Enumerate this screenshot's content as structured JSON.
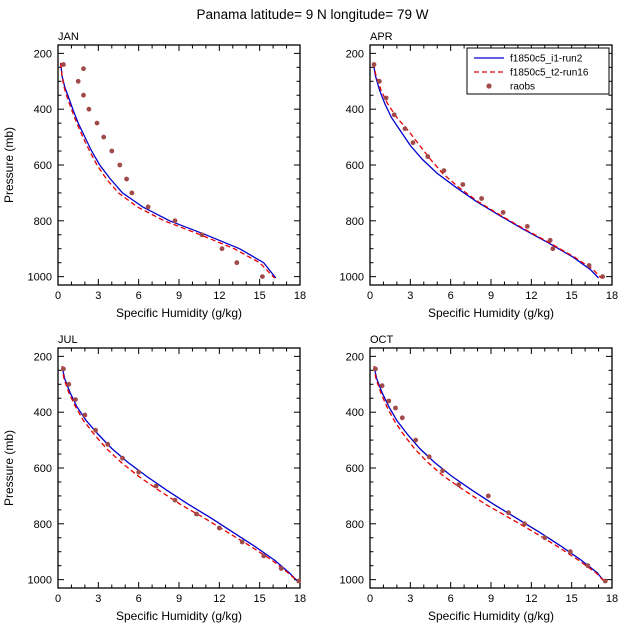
{
  "figure_title": "Panama  latitude= 9 N longitude= 79 W",
  "chart_data": [
    {
      "type": "line",
      "title": "JAN",
      "xlabel": "Specific Humidity (g/kg)",
      "ylabel": "Pressure (mb)",
      "xlim": [
        0,
        18
      ],
      "ylim": [
        170,
        1030
      ],
      "xticks": [
        0,
        3,
        6,
        9,
        12,
        15,
        18
      ],
      "xminor": 1,
      "yticks": [
        200,
        400,
        600,
        800,
        1000
      ],
      "yminor": 50,
      "y_axis_direction": "increasing-downward",
      "series": [
        {
          "name": "f1850c5_i1-run2",
          "style": "solid",
          "color": "#0000cd",
          "points": [
            [
              0.2,
              235
            ],
            [
              0.3,
              280
            ],
            [
              0.5,
              320
            ],
            [
              0.8,
              360
            ],
            [
              1.1,
              400
            ],
            [
              1.5,
              450
            ],
            [
              2.0,
              500
            ],
            [
              2.5,
              550
            ],
            [
              3.1,
              600
            ],
            [
              3.9,
              650
            ],
            [
              4.8,
              700
            ],
            [
              6.3,
              750
            ],
            [
              8.3,
              800
            ],
            [
              11.0,
              850
            ],
            [
              13.5,
              900
            ],
            [
              15.3,
              950
            ],
            [
              16.2,
              1005
            ]
          ]
        },
        {
          "name": "f1850c5_t2-run16",
          "style": "dashed",
          "color": "#e80000",
          "points": [
            [
              0.2,
              235
            ],
            [
              0.3,
              280
            ],
            [
              0.45,
              320
            ],
            [
              0.7,
              360
            ],
            [
              1.0,
              400
            ],
            [
              1.4,
              450
            ],
            [
              1.85,
              500
            ],
            [
              2.35,
              550
            ],
            [
              2.9,
              600
            ],
            [
              3.6,
              650
            ],
            [
              4.5,
              700
            ],
            [
              5.9,
              750
            ],
            [
              7.9,
              800
            ],
            [
              10.6,
              850
            ],
            [
              13.1,
              900
            ],
            [
              15.0,
              950
            ],
            [
              16.1,
              1005
            ]
          ]
        },
        {
          "name": "raobs",
          "style": "dot",
          "color": "#a04a4a",
          "points": [
            [
              0.4,
              240
            ],
            [
              1.9,
              255
            ],
            [
              1.5,
              300
            ],
            [
              1.9,
              350
            ],
            [
              2.3,
              400
            ],
            [
              2.9,
              450
            ],
            [
              3.4,
              500
            ],
            [
              4.0,
              550
            ],
            [
              4.6,
              600
            ],
            [
              5.1,
              650
            ],
            [
              5.5,
              700
            ],
            [
              6.7,
              750
            ],
            [
              8.7,
              800
            ],
            [
              10.7,
              850
            ],
            [
              12.2,
              900
            ],
            [
              13.3,
              950
            ],
            [
              15.2,
              1000
            ]
          ]
        }
      ]
    },
    {
      "type": "line",
      "title": "APR",
      "xlabel": "Specific Humidity (g/kg)",
      "ylabel": "",
      "xlim": [
        0,
        18
      ],
      "ylim": [
        170,
        1030
      ],
      "xticks": [
        0,
        3,
        6,
        9,
        12,
        15,
        18
      ],
      "xminor": 1,
      "yticks": [
        200,
        400,
        600,
        800,
        1000
      ],
      "yminor": 50,
      "y_axis_direction": "increasing-downward",
      "legend": {
        "position": "top-right",
        "entries": [
          {
            "label": "f1850c5_i1-run2",
            "style": "solid",
            "color": "#0000cd"
          },
          {
            "label": "f1850c5_t2-run16",
            "style": "dashed",
            "color": "#e80000"
          },
          {
            "label": "raobs",
            "style": "dot",
            "color": "#a04a4a"
          }
        ]
      },
      "series": [
        {
          "name": "f1850c5_i1-run2",
          "style": "solid",
          "color": "#0000cd",
          "points": [
            [
              0.25,
              235
            ],
            [
              0.4,
              280
            ],
            [
              0.7,
              330
            ],
            [
              1.1,
              380
            ],
            [
              1.6,
              430
            ],
            [
              2.3,
              480
            ],
            [
              3.0,
              530
            ],
            [
              3.9,
              580
            ],
            [
              5.0,
              630
            ],
            [
              6.4,
              680
            ],
            [
              7.9,
              730
            ],
            [
              9.6,
              780
            ],
            [
              11.4,
              830
            ],
            [
              13.3,
              880
            ],
            [
              15.1,
              930
            ],
            [
              16.4,
              975
            ],
            [
              17.0,
              1005
            ]
          ]
        },
        {
          "name": "f1850c5_t2-run16",
          "style": "dashed",
          "color": "#e80000",
          "points": [
            [
              0.25,
              235
            ],
            [
              0.45,
              280
            ],
            [
              0.8,
              330
            ],
            [
              1.3,
              380
            ],
            [
              2.0,
              430
            ],
            [
              2.9,
              480
            ],
            [
              3.7,
              530
            ],
            [
              4.5,
              580
            ],
            [
              5.4,
              630
            ],
            [
              6.6,
              680
            ],
            [
              8.0,
              730
            ],
            [
              9.7,
              780
            ],
            [
              11.5,
              830
            ],
            [
              13.4,
              880
            ],
            [
              15.2,
              930
            ],
            [
              16.6,
              975
            ],
            [
              17.2,
              1005
            ]
          ]
        },
        {
          "name": "raobs",
          "style": "dot",
          "color": "#a04a4a",
          "points": [
            [
              0.3,
              240
            ],
            [
              0.7,
              300
            ],
            [
              1.2,
              360
            ],
            [
              1.8,
              420
            ],
            [
              2.6,
              470
            ],
            [
              3.2,
              520
            ],
            [
              4.3,
              570
            ],
            [
              5.5,
              620
            ],
            [
              6.9,
              670
            ],
            [
              8.3,
              720
            ],
            [
              9.9,
              770
            ],
            [
              11.7,
              820
            ],
            [
              13.4,
              870
            ],
            [
              13.6,
              900
            ],
            [
              16.3,
              960
            ],
            [
              17.3,
              1000
            ]
          ]
        }
      ]
    },
    {
      "type": "line",
      "title": "JUL",
      "xlabel": "Specific Humidity (g/kg)",
      "ylabel": "Pressure (mb)",
      "xlim": [
        0,
        18
      ],
      "ylim": [
        170,
        1030
      ],
      "xticks": [
        0,
        3,
        6,
        9,
        12,
        15,
        18
      ],
      "xminor": 1,
      "yticks": [
        200,
        400,
        600,
        800,
        1000
      ],
      "yminor": 50,
      "y_axis_direction": "increasing-downward",
      "series": [
        {
          "name": "f1850c5_i1-run2",
          "style": "solid",
          "color": "#0000cd",
          "points": [
            [
              0.3,
              235
            ],
            [
              0.5,
              280
            ],
            [
              0.9,
              330
            ],
            [
              1.4,
              380
            ],
            [
              2.1,
              430
            ],
            [
              3.0,
              480
            ],
            [
              4.0,
              530
            ],
            [
              5.2,
              580
            ],
            [
              6.6,
              630
            ],
            [
              8.1,
              680
            ],
            [
              9.7,
              730
            ],
            [
              11.4,
              780
            ],
            [
              13.0,
              830
            ],
            [
              14.6,
              880
            ],
            [
              16.1,
              930
            ],
            [
              17.2,
              975
            ],
            [
              17.8,
              1005
            ]
          ]
        },
        {
          "name": "f1850c5_t2-run16",
          "style": "dashed",
          "color": "#e80000",
          "points": [
            [
              0.3,
              235
            ],
            [
              0.45,
              280
            ],
            [
              0.8,
              330
            ],
            [
              1.3,
              380
            ],
            [
              1.9,
              430
            ],
            [
              2.7,
              480
            ],
            [
              3.6,
              530
            ],
            [
              4.7,
              580
            ],
            [
              6.0,
              630
            ],
            [
              7.5,
              680
            ],
            [
              9.1,
              730
            ],
            [
              10.9,
              780
            ],
            [
              12.6,
              830
            ],
            [
              14.3,
              880
            ],
            [
              15.9,
              930
            ],
            [
              17.1,
              975
            ],
            [
              17.8,
              1005
            ]
          ]
        },
        {
          "name": "raobs",
          "style": "dot",
          "color": "#a04a4a",
          "points": [
            [
              0.4,
              245
            ],
            [
              0.8,
              300
            ],
            [
              1.3,
              355
            ],
            [
              2.0,
              410
            ],
            [
              2.8,
              465
            ],
            [
              3.7,
              515
            ],
            [
              4.8,
              565
            ],
            [
              6.0,
              615
            ],
            [
              7.3,
              665
            ],
            [
              8.7,
              715
            ],
            [
              10.3,
              765
            ],
            [
              12.0,
              815
            ],
            [
              13.7,
              865
            ],
            [
              15.3,
              915
            ],
            [
              16.6,
              960
            ],
            [
              17.9,
              1005
            ]
          ]
        }
      ]
    },
    {
      "type": "line",
      "title": "OCT",
      "xlabel": "Specific Humidity (g/kg)",
      "ylabel": "",
      "xlim": [
        0,
        18
      ],
      "ylim": [
        170,
        1030
      ],
      "xticks": [
        0,
        3,
        6,
        9,
        12,
        15,
        18
      ],
      "xminor": 1,
      "yticks": [
        200,
        400,
        600,
        800,
        1000
      ],
      "yminor": 50,
      "y_axis_direction": "increasing-downward",
      "series": [
        {
          "name": "f1850c5_i1-run2",
          "style": "solid",
          "color": "#0000cd",
          "points": [
            [
              0.3,
              235
            ],
            [
              0.5,
              280
            ],
            [
              0.9,
              330
            ],
            [
              1.4,
              380
            ],
            [
              2.0,
              430
            ],
            [
              2.8,
              480
            ],
            [
              3.7,
              530
            ],
            [
              4.8,
              580
            ],
            [
              6.1,
              630
            ],
            [
              7.6,
              680
            ],
            [
              9.2,
              730
            ],
            [
              10.9,
              780
            ],
            [
              12.6,
              830
            ],
            [
              14.2,
              880
            ],
            [
              15.7,
              930
            ],
            [
              16.9,
              975
            ],
            [
              17.4,
              1005
            ]
          ]
        },
        {
          "name": "f1850c5_t2-run16",
          "style": "dashed",
          "color": "#e80000",
          "points": [
            [
              0.3,
              235
            ],
            [
              0.45,
              280
            ],
            [
              0.8,
              330
            ],
            [
              1.25,
              380
            ],
            [
              1.8,
              430
            ],
            [
              2.5,
              480
            ],
            [
              3.3,
              530
            ],
            [
              4.3,
              580
            ],
            [
              5.5,
              630
            ],
            [
              7.0,
              680
            ],
            [
              8.6,
              730
            ],
            [
              10.4,
              780
            ],
            [
              12.2,
              830
            ],
            [
              13.9,
              880
            ],
            [
              15.5,
              930
            ],
            [
              16.8,
              975
            ],
            [
              17.4,
              1005
            ]
          ]
        },
        {
          "name": "raobs",
          "style": "dot",
          "color": "#a04a4a",
          "points": [
            [
              0.4,
              245
            ],
            [
              0.9,
              305
            ],
            [
              1.4,
              360
            ],
            [
              1.9,
              385
            ],
            [
              2.4,
              420
            ],
            [
              3.4,
              500
            ],
            [
              4.4,
              560
            ],
            [
              5.4,
              610
            ],
            [
              6.6,
              660
            ],
            [
              8.8,
              700
            ],
            [
              10.3,
              760
            ],
            [
              11.5,
              800
            ],
            [
              13.0,
              850
            ],
            [
              14.9,
              900
            ],
            [
              16.2,
              950
            ],
            [
              17.5,
              1005
            ]
          ]
        }
      ]
    }
  ]
}
